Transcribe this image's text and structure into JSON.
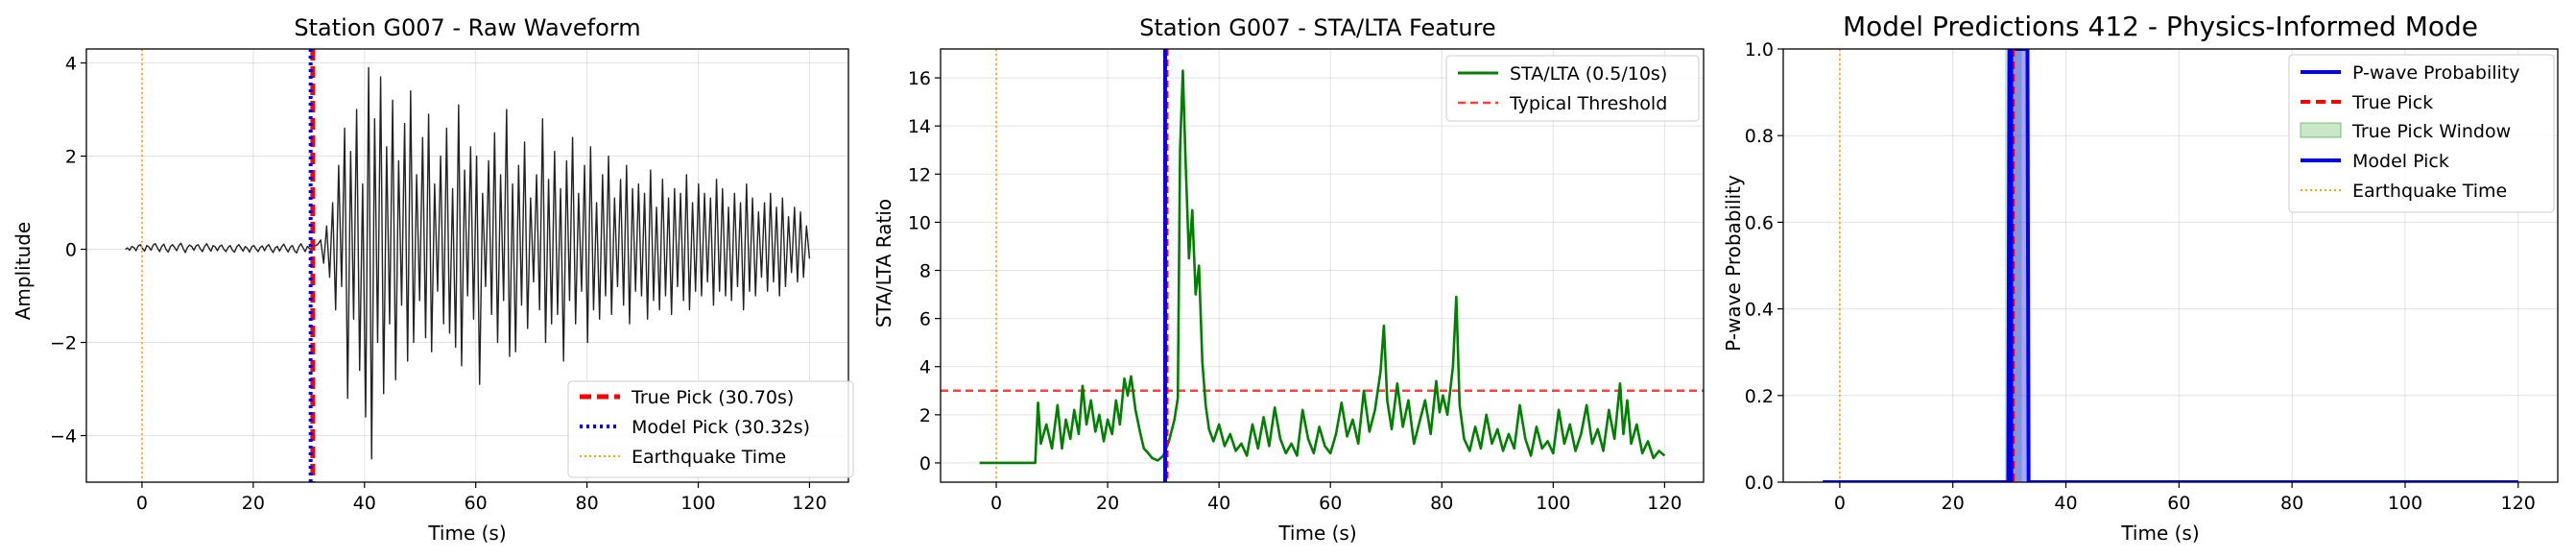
{
  "chart_data": [
    {
      "type": "line",
      "title": "Station G007 - Raw Waveform",
      "xlabel": "Time (s)",
      "ylabel": "Amplitude",
      "xlim": [
        -10,
        127
      ],
      "ylim": [
        -5,
        4.3
      ],
      "xticks": [
        0,
        20,
        40,
        60,
        80,
        100,
        120
      ],
      "yticks": [
        -4,
        -2,
        0,
        2,
        4
      ],
      "grid": true,
      "legend_position": "lower-right",
      "colors": {
        "waveform": "#222222",
        "true_pick": "#ff0000",
        "model_pick": "#0000ff",
        "earthquake": "#ffa500"
      },
      "waveform": {
        "t_start": -3,
        "t_end": 120,
        "noise_end": 30.5,
        "samples": [
          0,
          0.03,
          -0.02,
          0.06,
          0.04,
          -0.03,
          0.07,
          0.1,
          0.02,
          -0.04,
          0.08,
          0.05,
          -0.02,
          0.09,
          0.12,
          0.03,
          -0.05,
          0.06,
          0.11,
          0.0,
          -0.06,
          0.05,
          0.1,
          0.04,
          -0.03,
          0.08,
          0.13,
          0.02,
          -0.07,
          0.04,
          0.09,
          0.06,
          -0.02,
          0.07,
          0.1,
          0.01,
          -0.05,
          0.06,
          0.12,
          0.03,
          -0.04,
          0.08,
          0.05,
          -0.03,
          0.06,
          0.09,
          0.0,
          -0.05,
          0.04,
          0.08,
          -0.02,
          -0.06,
          0.05,
          0.1,
          0.03,
          -0.04,
          0.06,
          0.02,
          -0.06,
          0.05,
          0.08,
          0.01,
          -0.05,
          0.04,
          0.07,
          -0.03,
          0.06,
          0.1,
          0.0,
          -0.07,
          0.03,
          0.06,
          -0.04,
          0.05,
          0.11,
          0.02,
          -0.06,
          0.04,
          0.08,
          -0.03,
          -0.08,
          0.05,
          0.12,
          0.03,
          -0.05,
          0.06,
          0.02,
          -0.04,
          0.07,
          0.1,
          0.2,
          -0.3,
          0.5,
          -0.6,
          1.0,
          -1.3,
          1.8,
          -0.8,
          2.6,
          -3.2,
          2.1,
          -1.5,
          3.0,
          -2.6,
          1.4,
          -3.6,
          3.9,
          -4.5,
          2.8,
          -2.0,
          3.7,
          -3.1,
          2.2,
          -1.6,
          3.2,
          -2.8,
          1.9,
          -1.2,
          2.7,
          -2.4,
          3.4,
          -2.0,
          1.6,
          -1.1,
          2.4,
          -1.9,
          2.9,
          -2.2,
          1.4,
          -0.9,
          2.0,
          -1.6,
          2.6,
          -1.8,
          1.3,
          -2.1,
          3.1,
          -2.5,
          1.7,
          -1.0,
          2.2,
          -1.5,
          2.0,
          -2.9,
          1.2,
          -0.8,
          1.9,
          -1.4,
          2.5,
          -2.0,
          1.6,
          -1.1,
          3.0,
          -2.3,
          1.4,
          -2.2,
          1.8,
          -1.2,
          2.3,
          -1.7,
          1.1,
          -0.7,
          1.6,
          -1.3,
          2.8,
          -2.0,
          1.5,
          -1.6,
          2.1,
          -1.4,
          1.3,
          -2.4,
          1.9,
          -1.1,
          2.4,
          -1.6,
          1.2,
          -0.9,
          1.8,
          -2.0,
          2.2,
          -1.3,
          1.0,
          -1.5,
          1.6,
          -1.0,
          2.0,
          -1.4,
          1.1,
          -0.8,
          1.5,
          -1.2,
          1.8,
          -1.6,
          1.3,
          -0.9,
          1.4,
          -1.0,
          1.2,
          -1.5,
          1.7,
          -1.1,
          0.9,
          -1.3,
          1.5,
          -1.0,
          1.1,
          -1.4,
          1.3,
          -0.8,
          1.2,
          -1.1,
          1.6,
          -1.3,
          1.0,
          -0.9,
          1.4,
          -1.0,
          1.2,
          -0.7,
          1.1,
          -1.2,
          1.5,
          -0.9,
          1.3,
          -1.0,
          0.9,
          -1.1,
          1.2,
          -0.8,
          1.0,
          -1.3,
          1.4,
          -0.9,
          1.1,
          -1.0,
          0.8,
          -0.6,
          1.0,
          -0.9,
          1.2,
          -0.7,
          0.9,
          -1.0,
          1.1,
          -0.8,
          0.7,
          -0.5,
          0.9,
          -0.7,
          0.8,
          -0.6,
          0.5,
          -0.2
        ]
      },
      "lines": {
        "true_pick": 30.7,
        "model_pick": 30.32,
        "earthquake_time": 0
      },
      "legend": [
        "True Pick (30.70s)",
        "Model Pick (30.32s)",
        "Earthquake Time"
      ]
    },
    {
      "type": "line",
      "title": "Station G007 - STA/LTA Feature",
      "xlabel": "Time (s)",
      "ylabel": "STA/LTA Ratio",
      "xlim": [
        -10,
        127
      ],
      "ylim": [
        -0.8,
        17.2
      ],
      "xticks": [
        0,
        20,
        40,
        60,
        80,
        100,
        120
      ],
      "yticks": [
        0,
        2,
        4,
        6,
        8,
        10,
        12,
        14,
        16
      ],
      "grid": true,
      "legend_position": "upper-right",
      "colors": {
        "stalta": "#008000",
        "threshold": "#ff0000",
        "true_pick": "#ff0000",
        "model_pick": "#0000ff",
        "earthquake": "#ffa500"
      },
      "series": [
        {
          "name": "STA/LTA (0.5/10s)",
          "points": [
            [
              -3,
              0
            ],
            [
              7,
              0
            ],
            [
              7.5,
              2.5
            ],
            [
              8,
              0.8
            ],
            [
              9,
              1.6
            ],
            [
              10,
              0.6
            ],
            [
              11,
              2.4
            ],
            [
              11.8,
              0.6
            ],
            [
              12.5,
              1.8
            ],
            [
              13.3,
              1.0
            ],
            [
              14,
              2.2
            ],
            [
              14.8,
              1.2
            ],
            [
              15.5,
              3.2
            ],
            [
              16.2,
              1.6
            ],
            [
              17,
              2.6
            ],
            [
              17.8,
              1.3
            ],
            [
              18.5,
              2.0
            ],
            [
              19.3,
              0.9
            ],
            [
              20,
              1.8
            ],
            [
              20.8,
              1.2
            ],
            [
              21.5,
              2.6
            ],
            [
              22.2,
              1.6
            ],
            [
              23,
              3.5
            ],
            [
              23.6,
              2.8
            ],
            [
              24.2,
              3.6
            ],
            [
              25,
              2.2
            ],
            [
              25.8,
              1.3
            ],
            [
              26.5,
              0.6
            ],
            [
              27.3,
              0.4
            ],
            [
              28,
              0.2
            ],
            [
              29,
              0.1
            ],
            [
              30,
              0.3
            ],
            [
              31,
              0.9
            ],
            [
              32,
              1.8
            ],
            [
              32.6,
              2.7
            ],
            [
              33,
              13.0
            ],
            [
              33.5,
              16.3
            ],
            [
              34,
              12.5
            ],
            [
              34.6,
              8.5
            ],
            [
              35.2,
              10.5
            ],
            [
              35.8,
              7.0
            ],
            [
              36.4,
              8.2
            ],
            [
              37,
              4.2
            ],
            [
              37.6,
              2.4
            ],
            [
              38.2,
              1.4
            ],
            [
              39,
              0.9
            ],
            [
              40,
              1.6
            ],
            [
              41,
              0.7
            ],
            [
              42,
              1.2
            ],
            [
              43,
              0.5
            ],
            [
              44,
              0.8
            ],
            [
              45,
              0.3
            ],
            [
              46,
              1.6
            ],
            [
              47,
              0.6
            ],
            [
              48,
              1.9
            ],
            [
              49,
              0.7
            ],
            [
              50,
              2.3
            ],
            [
              51,
              1.0
            ],
            [
              52,
              0.4
            ],
            [
              53,
              0.8
            ],
            [
              54,
              0.3
            ],
            [
              55,
              2.2
            ],
            [
              56,
              1.0
            ],
            [
              57,
              0.4
            ],
            [
              58,
              1.5
            ],
            [
              59,
              0.7
            ],
            [
              60,
              0.4
            ],
            [
              61,
              1.2
            ],
            [
              62,
              2.5
            ],
            [
              63,
              1.1
            ],
            [
              64,
              1.8
            ],
            [
              65,
              0.8
            ],
            [
              66,
              3.0
            ],
            [
              67,
              1.3
            ],
            [
              68,
              2.2
            ],
            [
              69,
              3.8
            ],
            [
              69.6,
              5.7
            ],
            [
              70.2,
              2.6
            ],
            [
              71,
              1.4
            ],
            [
              72,
              3.3
            ],
            [
              73,
              1.5
            ],
            [
              74,
              2.6
            ],
            [
              75,
              0.8
            ],
            [
              76,
              1.7
            ],
            [
              77,
              2.6
            ],
            [
              78,
              1.2
            ],
            [
              79,
              3.4
            ],
            [
              79.6,
              2.1
            ],
            [
              80.2,
              2.8
            ],
            [
              81,
              2.0
            ],
            [
              82,
              4.0
            ],
            [
              82.6,
              6.9
            ],
            [
              83.2,
              2.4
            ],
            [
              84,
              1.0
            ],
            [
              85,
              0.5
            ],
            [
              86,
              1.5
            ],
            [
              87,
              0.6
            ],
            [
              88,
              2.0
            ],
            [
              89,
              0.8
            ],
            [
              90,
              1.4
            ],
            [
              91,
              0.5
            ],
            [
              92,
              1.2
            ],
            [
              93,
              0.6
            ],
            [
              94,
              2.4
            ],
            [
              95,
              1.0
            ],
            [
              96,
              0.3
            ],
            [
              97,
              1.5
            ],
            [
              98,
              0.6
            ],
            [
              99,
              0.9
            ],
            [
              100,
              0.4
            ],
            [
              101,
              2.2
            ],
            [
              102,
              0.8
            ],
            [
              103,
              1.6
            ],
            [
              104,
              0.5
            ],
            [
              105,
              1.2
            ],
            [
              106,
              2.4
            ],
            [
              107,
              0.8
            ],
            [
              108,
              1.4
            ],
            [
              109,
              0.5
            ],
            [
              110,
              2.2
            ],
            [
              111,
              1.0
            ],
            [
              112,
              3.3
            ],
            [
              112.6,
              1.2
            ],
            [
              113.3,
              2.6
            ],
            [
              114,
              0.8
            ],
            [
              115,
              1.6
            ],
            [
              116,
              0.4
            ],
            [
              117,
              0.9
            ],
            [
              118,
              0.2
            ],
            [
              119,
              0.5
            ],
            [
              120,
              0.3
            ]
          ]
        }
      ],
      "threshold": {
        "name": "Typical Threshold",
        "value": 3
      },
      "lines": {
        "true_pick": 30.7,
        "model_pick": 30.32,
        "earthquake_time": 0
      },
      "legend": [
        "STA/LTA (0.5/10s)",
        "Typical Threshold"
      ]
    },
    {
      "type": "area",
      "title": "Model Predictions 412 - Physics-Informed Mode",
      "xlabel": "Time (s)",
      "ylabel": "P-wave Probability",
      "xlim": [
        -10,
        127
      ],
      "ylim": [
        0,
        1
      ],
      "xticks": [
        0,
        20,
        40,
        60,
        80,
        100,
        120
      ],
      "yticks": [
        0.0,
        0.2,
        0.4,
        0.6,
        0.8,
        1.0
      ],
      "grid": true,
      "legend_position": "upper-right",
      "colors": {
        "probability": "#0000ff",
        "true_pick": "#ff0000",
        "window": "#2ca02c",
        "model_pick": "#0000ff",
        "earthquake": "#ffa500"
      },
      "probability": {
        "t_start": -3,
        "t_end": 120,
        "rise_start": 29.8,
        "plateau_start": 30.0,
        "plateau_end": 33.2,
        "fall_end": 33.4
      },
      "true_pick_window": [
        29.2,
        32.2
      ],
      "lines": {
        "true_pick": 30.7,
        "model_pick": 30.32,
        "earthquake_time": 0
      },
      "legend": [
        "P-wave Probability",
        "True Pick",
        "True Pick Window",
        "Model Pick",
        "Earthquake Time"
      ]
    }
  ]
}
